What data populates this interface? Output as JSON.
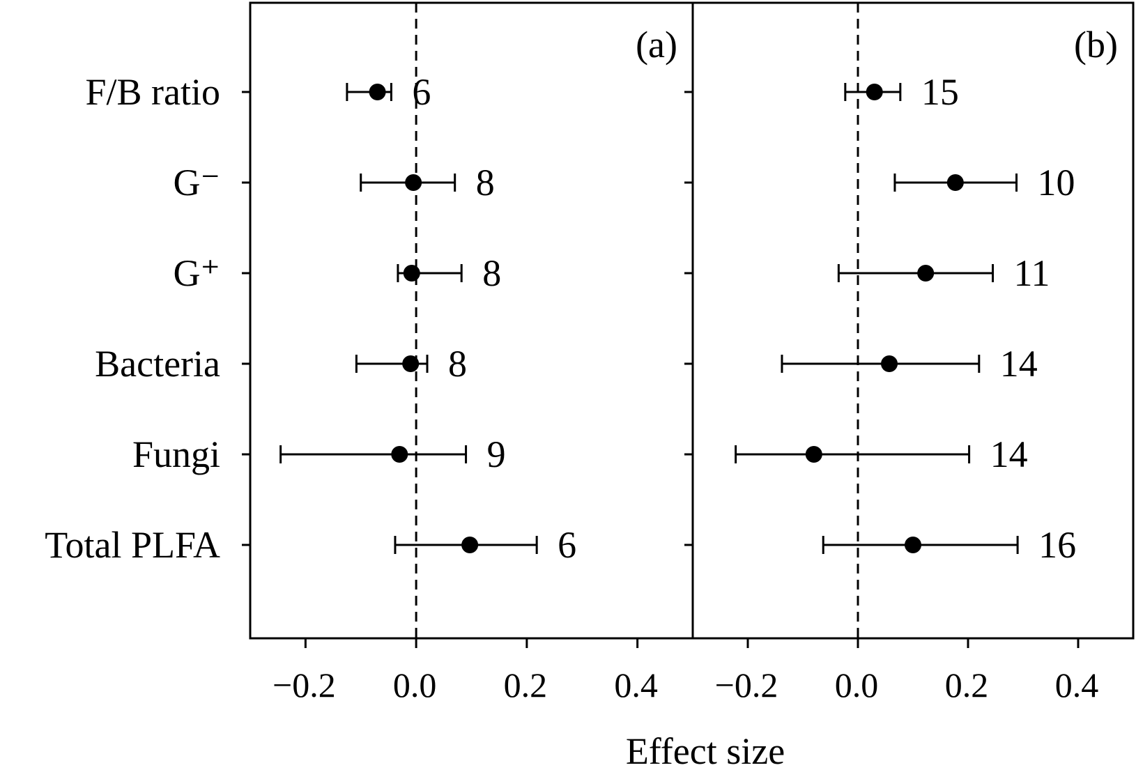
{
  "chart_data": {
    "type": "scatter",
    "xlabel": "Effect size",
    "xlim": [
      -0.3,
      0.5
    ],
    "xticks": [
      -0.2,
      0.0,
      0.2,
      0.4
    ],
    "xtick_labels": [
      "−0.2",
      "0.0",
      "0.2",
      "0.4"
    ],
    "reference_line_x": 0,
    "categories": [
      "F/B ratio",
      "G⁻",
      "G⁺",
      "Bacteria",
      "Fungi",
      "Total PLFA"
    ],
    "panels": [
      {
        "label": "(a)",
        "points": [
          {
            "category": "F/B ratio",
            "value": -0.07,
            "ci_low": -0.125,
            "ci_high": -0.045,
            "n": "6"
          },
          {
            "category": "G⁻",
            "value": -0.005,
            "ci_low": -0.1,
            "ci_high": 0.07,
            "n": "8"
          },
          {
            "category": "G⁺",
            "value": -0.008,
            "ci_low": -0.033,
            "ci_high": 0.082,
            "n": "8"
          },
          {
            "category": "Bacteria",
            "value": -0.01,
            "ci_low": -0.108,
            "ci_high": 0.02,
            "n": "8"
          },
          {
            "category": "Fungi",
            "value": -0.03,
            "ci_low": -0.245,
            "ci_high": 0.09,
            "n": "9"
          },
          {
            "category": "Total PLFA",
            "value": 0.097,
            "ci_low": -0.038,
            "ci_high": 0.218,
            "n": "6"
          }
        ]
      },
      {
        "label": "(b)",
        "points": [
          {
            "category": "F/B ratio",
            "value": 0.03,
            "ci_low": -0.023,
            "ci_high": 0.077,
            "n": "15"
          },
          {
            "category": "G⁻",
            "value": 0.177,
            "ci_low": 0.067,
            "ci_high": 0.288,
            "n": "10"
          },
          {
            "category": "G⁺",
            "value": 0.123,
            "ci_low": -0.035,
            "ci_high": 0.245,
            "n": "11"
          },
          {
            "category": "Bacteria",
            "value": 0.057,
            "ci_low": -0.138,
            "ci_high": 0.22,
            "n": "14"
          },
          {
            "category": "Fungi",
            "value": -0.08,
            "ci_low": -0.222,
            "ci_high": 0.202,
            "n": "14"
          },
          {
            "category": "Total PLFA",
            "value": 0.1,
            "ci_low": -0.063,
            "ci_high": 0.29,
            "n": "16"
          }
        ]
      }
    ]
  }
}
